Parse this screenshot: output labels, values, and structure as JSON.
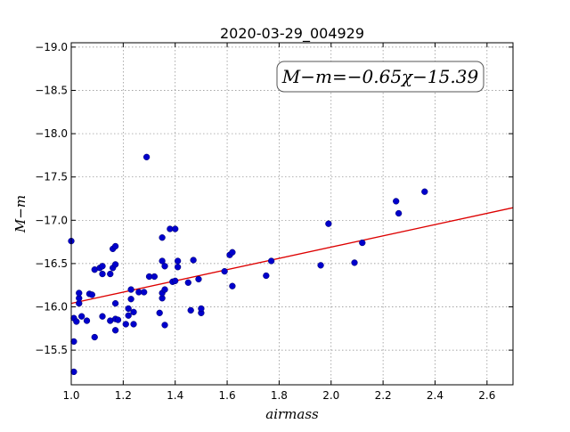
{
  "chart_data": {
    "type": "scatter",
    "title": "2020-03-29_004929",
    "xlabel": "airmass",
    "ylabel": "M−m",
    "xlim": [
      1.0,
      2.7
    ],
    "ylim": [
      -19.05,
      -15.1
    ],
    "y_inverted": true,
    "grid": true,
    "x_ticks": [
      1.0,
      1.2,
      1.4,
      1.6,
      1.8,
      2.0,
      2.2,
      2.4,
      2.6
    ],
    "x_tick_labels": [
      "1.0",
      "1.2",
      "1.4",
      "1.6",
      "1.8",
      "2.0",
      "2.2",
      "2.4",
      "2.6"
    ],
    "y_ticks": [
      -15.5,
      -16.0,
      -16.5,
      -17.0,
      -17.5,
      -18.0,
      -18.5,
      -19.0
    ],
    "y_tick_labels": [
      "−15.5",
      "−16.0",
      "−16.5",
      "−17.0",
      "−17.5",
      "−18.0",
      "−18.5",
      "−19.0"
    ],
    "annotation": "M−m=−0.65χ−15.39",
    "annotation_position": "top-right",
    "point_color": "#0000cc",
    "fit_color": "#dd0000",
    "fit_line": {
      "slope": -0.65,
      "intercept": -15.39
    },
    "series": [
      {
        "points": [
          [
            1.0,
            -16.76
          ],
          [
            1.01,
            -15.25
          ],
          [
            1.01,
            -15.6
          ],
          [
            1.01,
            -15.87
          ],
          [
            1.02,
            -15.83
          ],
          [
            1.03,
            -16.04
          ],
          [
            1.03,
            -16.1
          ],
          [
            1.03,
            -16.16
          ],
          [
            1.04,
            -15.89
          ],
          [
            1.06,
            -15.84
          ],
          [
            1.07,
            -16.15
          ],
          [
            1.08,
            -16.14
          ],
          [
            1.09,
            -15.65
          ],
          [
            1.09,
            -16.43
          ],
          [
            1.11,
            -16.45
          ],
          [
            1.12,
            -15.89
          ],
          [
            1.12,
            -16.38
          ],
          [
            1.12,
            -16.47
          ],
          [
            1.15,
            -15.84
          ],
          [
            1.15,
            -16.38
          ],
          [
            1.16,
            -16.67
          ],
          [
            1.16,
            -16.45
          ],
          [
            1.17,
            -16.7
          ],
          [
            1.17,
            -16.49
          ],
          [
            1.17,
            -15.73
          ],
          [
            1.17,
            -16.04
          ],
          [
            1.17,
            -15.86
          ],
          [
            1.18,
            -15.85
          ],
          [
            1.21,
            -15.8
          ],
          [
            1.22,
            -15.9
          ],
          [
            1.22,
            -15.98
          ],
          [
            1.23,
            -16.09
          ],
          [
            1.23,
            -16.2
          ],
          [
            1.24,
            -15.8
          ],
          [
            1.24,
            -15.94
          ],
          [
            1.26,
            -16.17
          ],
          [
            1.28,
            -16.17
          ],
          [
            1.29,
            -17.73
          ],
          [
            1.3,
            -16.35
          ],
          [
            1.32,
            -16.35
          ],
          [
            1.34,
            -15.93
          ],
          [
            1.35,
            -16.8
          ],
          [
            1.35,
            -16.53
          ],
          [
            1.35,
            -16.1
          ],
          [
            1.35,
            -16.16
          ],
          [
            1.36,
            -16.2
          ],
          [
            1.36,
            -16.47
          ],
          [
            1.36,
            -15.79
          ],
          [
            1.38,
            -16.9
          ],
          [
            1.39,
            -16.29
          ],
          [
            1.4,
            -16.3
          ],
          [
            1.4,
            -16.9
          ],
          [
            1.41,
            -16.46
          ],
          [
            1.41,
            -16.53
          ],
          [
            1.45,
            -16.28
          ],
          [
            1.46,
            -15.96
          ],
          [
            1.47,
            -16.54
          ],
          [
            1.49,
            -16.32
          ],
          [
            1.5,
            -15.93
          ],
          [
            1.5,
            -15.98
          ],
          [
            1.59,
            -16.41
          ],
          [
            1.61,
            -16.6
          ],
          [
            1.62,
            -16.63
          ],
          [
            1.62,
            -16.24
          ],
          [
            1.75,
            -16.36
          ],
          [
            1.77,
            -16.53
          ],
          [
            1.96,
            -16.48
          ],
          [
            1.99,
            -16.96
          ],
          [
            2.09,
            -16.51
          ],
          [
            2.12,
            -16.74
          ],
          [
            2.25,
            -17.22
          ],
          [
            2.26,
            -17.08
          ],
          [
            2.36,
            -17.33
          ]
        ]
      }
    ]
  }
}
